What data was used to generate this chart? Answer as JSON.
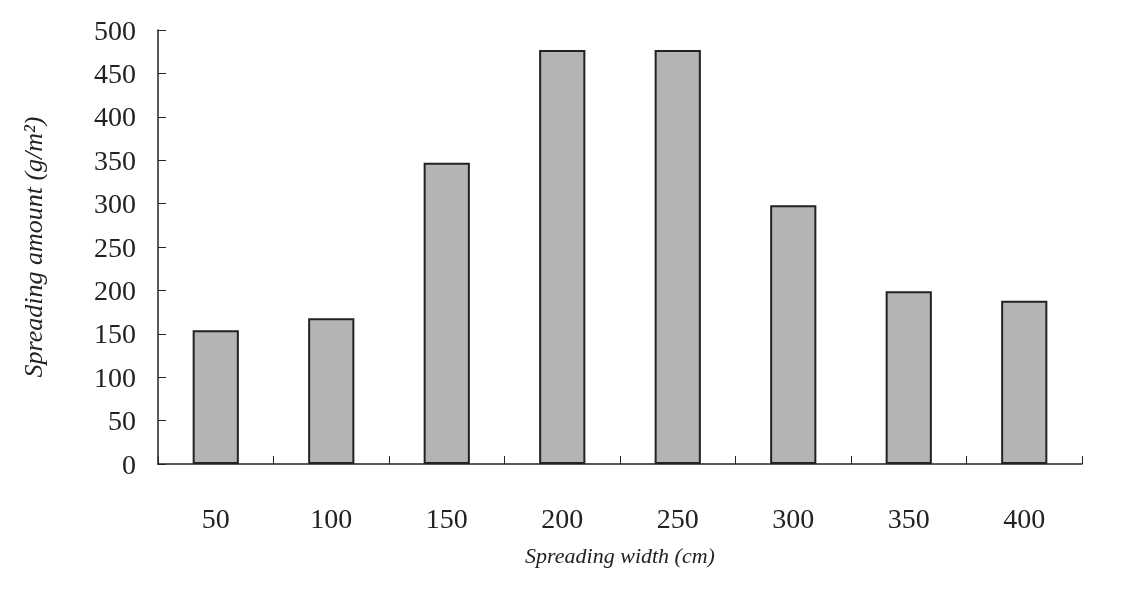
{
  "chart_data": {
    "type": "bar",
    "xlabel": "Spreading width (cm)",
    "ylabel": "Spreading amount (g/m²)",
    "categories": [
      "50",
      "100",
      "150",
      "200",
      "250",
      "300",
      "350",
      "400"
    ],
    "values": [
      154,
      168,
      347,
      477,
      477,
      298,
      199,
      188
    ],
    "color": "#b4b4b4",
    "ylim": [
      0,
      500
    ],
    "yticks": [
      0,
      50,
      100,
      150,
      200,
      250,
      300,
      350,
      400,
      450,
      500
    ],
    "grid": false
  }
}
